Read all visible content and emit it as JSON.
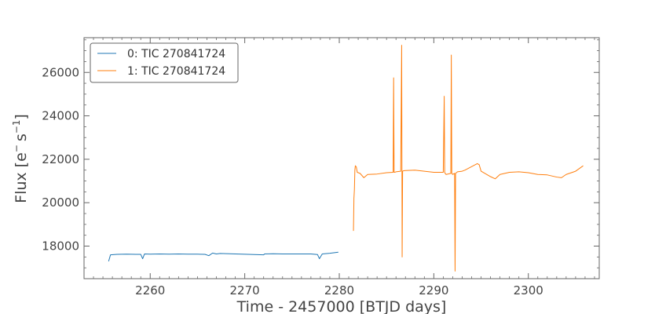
{
  "chart_data": {
    "type": "line",
    "xlabel": "Time - 2457000 [BTJD days]",
    "ylabel_parts": {
      "base": "Flux [e",
      "sup1": "−",
      "mid": "s",
      "sup2": "−1",
      "end": "]"
    },
    "xlim": [
      2253.0,
      2307.5
    ],
    "ylim": [
      16500,
      27600
    ],
    "x_ticks": [
      2260,
      2270,
      2280,
      2290,
      2300
    ],
    "y_ticks": [
      18000,
      20000,
      22000,
      24000,
      26000
    ],
    "x_tick_labels": [
      "2260",
      "2270",
      "2280",
      "2290",
      "2300"
    ],
    "y_tick_labels": [
      "18000",
      "20000",
      "22000",
      "24000",
      "26000"
    ],
    "legend_placement": "top-left",
    "grid": false,
    "series": [
      {
        "name": "0: TIC 270841724",
        "color": "#1f77b4",
        "x": [
          2255.6,
          2255.8,
          2256.5,
          2257.5,
          2258.5,
          2259.0,
          2259.2,
          2259.4,
          2260.0,
          2261.0,
          2262.0,
          2263.0,
          2264.0,
          2265.0,
          2265.8,
          2266.2,
          2266.6,
          2267.0,
          2267.4,
          2272.0,
          2272.1,
          2273.0,
          2274.0,
          2275.0,
          2276.0,
          2277.0,
          2277.7,
          2277.9,
          2278.2,
          2279.0,
          2279.9
        ],
        "y": [
          17300,
          17600,
          17620,
          17630,
          17620,
          17620,
          17420,
          17640,
          17630,
          17640,
          17630,
          17640,
          17630,
          17630,
          17620,
          17560,
          17680,
          17640,
          17660,
          17600,
          17640,
          17650,
          17640,
          17640,
          17640,
          17640,
          17610,
          17420,
          17640,
          17670,
          17720
        ]
      },
      {
        "name": "1: TIC 270841724",
        "color": "#ff7f0e",
        "x": [
          2281.5,
          2281.55,
          2281.6,
          2281.65,
          2281.7,
          2281.8,
          2281.9,
          2282.2,
          2282.6,
          2283.0,
          2284.0,
          2285.0,
          2285.7,
          2285.75,
          2285.8,
          2285.85,
          2286.0,
          2286.5,
          2286.6,
          2286.65,
          2286.7,
          2286.8,
          2287.0,
          2288.0,
          2289.0,
          2290.0,
          2291.0,
          2291.1,
          2291.15,
          2291.2,
          2291.3,
          2291.8,
          2291.85,
          2291.9,
          2292.0,
          2292.2,
          2292.25,
          2292.3,
          2292.5,
          2293.0,
          2293.3,
          2294.6,
          2294.8,
          2295.0,
          2296.0,
          2296.5,
          2297.0,
          2298.0,
          2299.0,
          2300.0,
          2301.0,
          2302.0,
          2303.0,
          2303.5,
          2304.0,
          2305.0,
          2305.8
        ],
        "y": [
          18700,
          20200,
          20600,
          21500,
          21700,
          21650,
          21400,
          21350,
          21150,
          21300,
          21320,
          21380,
          21400,
          25750,
          21400,
          21400,
          21420,
          21450,
          27250,
          17500,
          21450,
          21470,
          21480,
          21500,
          21450,
          21400,
          21400,
          24900,
          21400,
          21350,
          21300,
          21350,
          26800,
          21350,
          21300,
          21350,
          16850,
          21350,
          21420,
          21450,
          21500,
          21800,
          21750,
          21450,
          21200,
          21100,
          21300,
          21400,
          21420,
          21380,
          21300,
          21280,
          21180,
          21150,
          21300,
          21450,
          21700
        ]
      }
    ]
  }
}
